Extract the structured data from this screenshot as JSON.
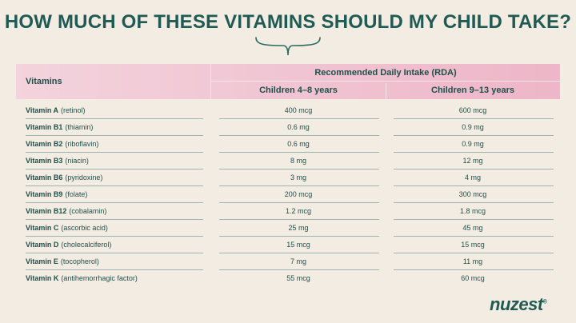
{
  "title": "HOW MUCH OF THESE VITAMINS SHOULD MY CHILD TAKE?",
  "table": {
    "header": {
      "vitamins": "Vitamins",
      "rda": "Recommended Daily Intake (RDA)",
      "col1": "Children 4–8 years",
      "col2": "Children 9–13 years"
    },
    "rows": [
      {
        "name": "Vitamin A",
        "detail": "(retinol)",
        "v1": "400 mcg",
        "v2": "600 mcg"
      },
      {
        "name": "Vitamin B1",
        "detail": "(thiamin)",
        "v1": "0.6 mg",
        "v2": "0.9 mg"
      },
      {
        "name": "Vitamin B2",
        "detail": "(riboflavin)",
        "v1": "0.6 mg",
        "v2": "0.9 mg"
      },
      {
        "name": "Vitamin B3",
        "detail": "(niacin)",
        "v1": "8 mg",
        "v2": "12 mg"
      },
      {
        "name": "Vitamin B6",
        "detail": "(pyridoxine)",
        "v1": "3 mg",
        "v2": "4 mg"
      },
      {
        "name": "Vitamin B9",
        "detail": "(folate)",
        "v1": "200 mcg",
        "v2": "300 mcg"
      },
      {
        "name": "Vitamin B12",
        "detail": "(cobalamin)",
        "v1": "1.2 mcg",
        "v2": "1.8 mcg"
      },
      {
        "name": "Vitamin C",
        "detail": "(ascorbic acid)",
        "v1": "25 mg",
        "v2": "45 mg"
      },
      {
        "name": "Vitamin D",
        "detail": "(cholecalciferol)",
        "v1": "15 mcg",
        "v2": "15 mcg"
      },
      {
        "name": "Vitamin E",
        "detail": "(tocopherol)",
        "v1": "7 mg",
        "v2": "11 mg"
      },
      {
        "name": "Vitamin K",
        "detail": "(antihemorrhagic factor)",
        "v1": "55 mcg",
        "v2": "60 mcg"
      }
    ]
  },
  "brand": {
    "logo_text": "nuzest",
    "mark": "®"
  },
  "colors": {
    "background": "#f3ece2",
    "header_pink": "#eeb6c8",
    "text_teal": "#1f5a55"
  }
}
